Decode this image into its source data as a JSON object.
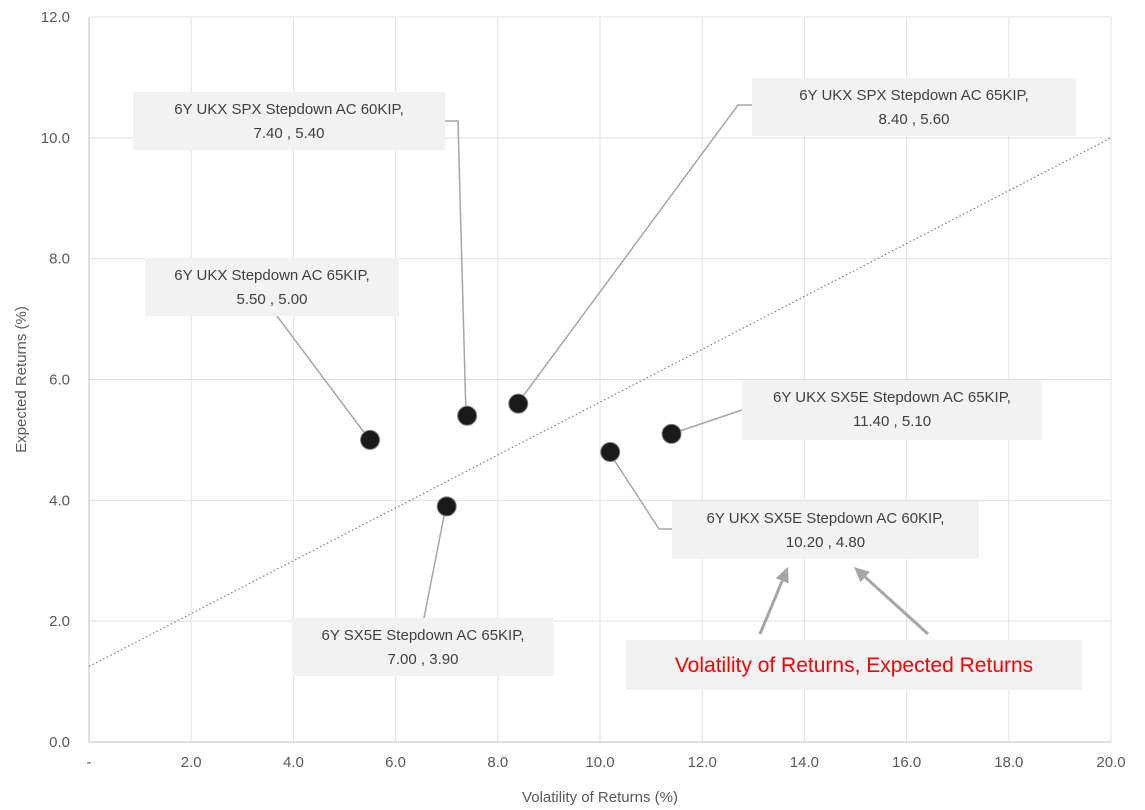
{
  "chart_data": {
    "type": "scatter",
    "xlabel": "Volatility of Returns (%)",
    "ylabel": "Expected Returns (%)",
    "xlim": [
      0,
      20
    ],
    "ylim": [
      0,
      12
    ],
    "x_tick_labels": [
      "-",
      "2.0",
      "4.0",
      "6.0",
      "8.0",
      "10.0",
      "12.0",
      "14.0",
      "16.0",
      "18.0",
      "20.0"
    ],
    "y_tick_labels": [
      "0.0",
      "2.0",
      "4.0",
      "6.0",
      "8.0",
      "10.0",
      "12.0"
    ],
    "grid": true,
    "points": [
      {
        "name": "6Y UKX Stepdown AC 65KIP",
        "x": 5.5,
        "y": 5.0,
        "label": "5.50 , 5.00",
        "color": "#1a1a1a"
      },
      {
        "name": "6Y SX5E Stepdown AC 65KIP",
        "x": 7.0,
        "y": 3.9,
        "label": "7.00 , 3.90",
        "color": "#1a1a1a"
      },
      {
        "name": "6Y UKX SPX Stepdown AC 60KIP",
        "x": 7.4,
        "y": 5.4,
        "label": "7.40 , 5.40",
        "color": "#1a1a1a"
      },
      {
        "name": "6Y UKX SPX Stepdown AC 65KIP",
        "x": 8.4,
        "y": 5.6,
        "label": "8.40 , 5.60",
        "color": "#1a1a1a"
      },
      {
        "name": "6Y UKX SX5E Stepdown AC 60KIP",
        "x": 10.2,
        "y": 4.8,
        "label": "10.20 , 4.80",
        "color": "#1a1a1a"
      },
      {
        "name": "6Y UKX SX5E Stepdown AC 65KIP",
        "x": 11.4,
        "y": 5.1,
        "label": "11.40 , 5.10",
        "color": "#1a1a1a"
      }
    ],
    "trendline": {
      "x": [
        0,
        20
      ],
      "y": [
        1.25,
        10.0
      ],
      "style": "dotted",
      "color": "#7f7f7f"
    },
    "annotation": {
      "text": "Volatility of Returns, Expected Returns",
      "color": "#ff0000"
    }
  }
}
